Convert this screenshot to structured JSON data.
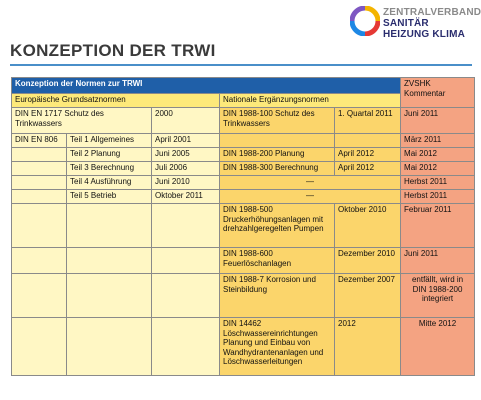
{
  "logo": {
    "icon": "zvshk-color-ring-logo",
    "lines": [
      "ZENTRALVERBAND",
      "SANITÄR",
      "HEIZUNG KLIMA"
    ]
  },
  "title": "KONZEPTION DER TRWI",
  "table": {
    "header_main": "Konzeption der Normen zur TRWI",
    "header_comment": "ZVSHK Kommentar",
    "header_eu": "Europäische Grundsatznormen",
    "header_national": "Nationale Ergänzungsnormen",
    "rows": [
      {
        "eu_norm": "DIN EN 1717 Schutz des Trinkwassers",
        "eu_part": "",
        "eu_date": "2000",
        "nat_norm": "DIN 1988-100 Schutz des Trinkwassers",
        "nat_date": "1. Quartal 2011",
        "comment": "Juni 2011"
      },
      {
        "eu_norm": "DIN EN 806",
        "eu_part": "Teil 1 Allgemeines",
        "eu_date": "April 2001",
        "nat_norm": "",
        "nat_date": "",
        "comment": "März 2011"
      },
      {
        "eu_norm": "",
        "eu_part": "Teil 2 Planung",
        "eu_date": "Juni 2005",
        "nat_norm": "DIN 1988-200 Planung",
        "nat_date": "April 2012",
        "comment": "Mai 2012"
      },
      {
        "eu_norm": "",
        "eu_part": "Teil 3 Berechnung",
        "eu_date": "Juli 2006",
        "nat_norm": "DIN 1988-300 Berechnung",
        "nat_date": "April 2012",
        "comment": "Mai 2012"
      },
      {
        "eu_norm": "",
        "eu_part": "Teil 4 Ausführung",
        "eu_date": "Juni 2010",
        "nat_norm": "—",
        "nat_date": "",
        "comment": "Herbst 2011"
      },
      {
        "eu_norm": "",
        "eu_part": "Teil 5 Betrieb",
        "eu_date": "Oktober 2011",
        "nat_norm": "—",
        "nat_date": "",
        "comment": "Herbst 2011"
      },
      {
        "eu_norm": "",
        "eu_part": "",
        "eu_date": "",
        "nat_norm": "DIN 1988-500 Druckerhöhungsanlagen mit drehzahlgeregelten Pumpen",
        "nat_date": "Oktober 2010",
        "comment": "Februar 2011"
      },
      {
        "eu_norm": "",
        "eu_part": "",
        "eu_date": "",
        "nat_norm": "DIN 1988-600 Feuerlöschanlagen",
        "nat_date": "Dezember 2010",
        "comment": "Juni 2011"
      },
      {
        "eu_norm": "",
        "eu_part": "",
        "eu_date": "",
        "nat_norm": "DIN 1988-7 Korrosion und Steinbildung",
        "nat_date": "Dezember 2007",
        "comment": "entfällt, wird in DIN 1988-200 integriert"
      },
      {
        "eu_norm": "",
        "eu_part": "",
        "eu_date": "",
        "nat_norm": "DIN 14462 Löschwassereinrichtungen Planung und Einbau von Wandhydrantenanlagen und Löschwasserleitungen",
        "nat_date": "2012",
        "comment": "Mitte 2012"
      }
    ]
  },
  "colors": {
    "header_blue": "#1f5fa8",
    "header_yellow": "#fde97a",
    "light_yellow": "#fff7c4",
    "orange": "#fbd56b",
    "salmon": "#f4a382",
    "rule_blue": "#4a8fc9"
  }
}
